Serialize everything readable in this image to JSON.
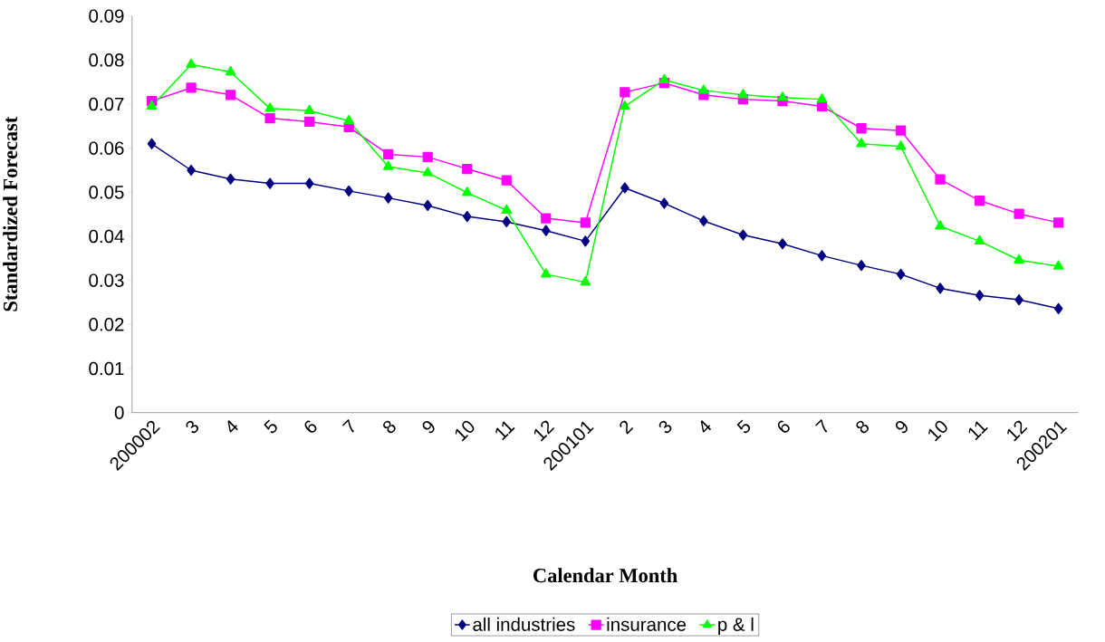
{
  "chart_data": {
    "type": "line",
    "xlabel": "Calendar Month",
    "ylabel": "Standardized Forecast",
    "categories": [
      "200002",
      "3",
      "4",
      "5",
      "6",
      "7",
      "8",
      "9",
      "10",
      "11",
      "12",
      "200101",
      "2",
      "3",
      "4",
      "5",
      "6",
      "7",
      "8",
      "9",
      "10",
      "11",
      "12",
      "200201"
    ],
    "series": [
      {
        "name": "all industries",
        "color": "#000080",
        "marker": "diamond",
        "values": [
          0.061,
          0.055,
          0.053,
          0.052,
          0.052,
          0.0503,
          0.0487,
          0.047,
          0.0445,
          0.0433,
          0.0413,
          0.0389,
          0.051,
          0.0475,
          0.0435,
          0.0403,
          0.0383,
          0.0356,
          0.0334,
          0.0314,
          0.0282,
          0.0266,
          0.0256,
          0.0236
        ]
      },
      {
        "name": "insurance",
        "color": "#ff00ff",
        "marker": "square",
        "values": [
          0.0707,
          0.0737,
          0.0721,
          0.0668,
          0.066,
          0.0648,
          0.0586,
          0.058,
          0.0553,
          0.0527,
          0.0441,
          0.0431,
          0.0727,
          0.0748,
          0.0721,
          0.0711,
          0.0707,
          0.0695,
          0.0645,
          0.064,
          0.0529,
          0.0481,
          0.0451,
          0.0431
        ]
      },
      {
        "name": "p & l",
        "color": "#00ff00",
        "marker": "triangle",
        "values": [
          0.0695,
          0.079,
          0.0773,
          0.069,
          0.0685,
          0.0662,
          0.0558,
          0.0544,
          0.0499,
          0.0459,
          0.0314,
          0.0296,
          0.0695,
          0.0755,
          0.0731,
          0.0721,
          0.0715,
          0.0711,
          0.061,
          0.0604,
          0.0423,
          0.0389,
          0.0346,
          0.0332
        ]
      }
    ],
    "ylim": [
      0,
      0.09
    ],
    "yticks": [
      0,
      0.01,
      0.02,
      0.03,
      0.04,
      0.05,
      0.06,
      0.07,
      0.08,
      0.09
    ],
    "grid": false,
    "legend": "bottom"
  }
}
